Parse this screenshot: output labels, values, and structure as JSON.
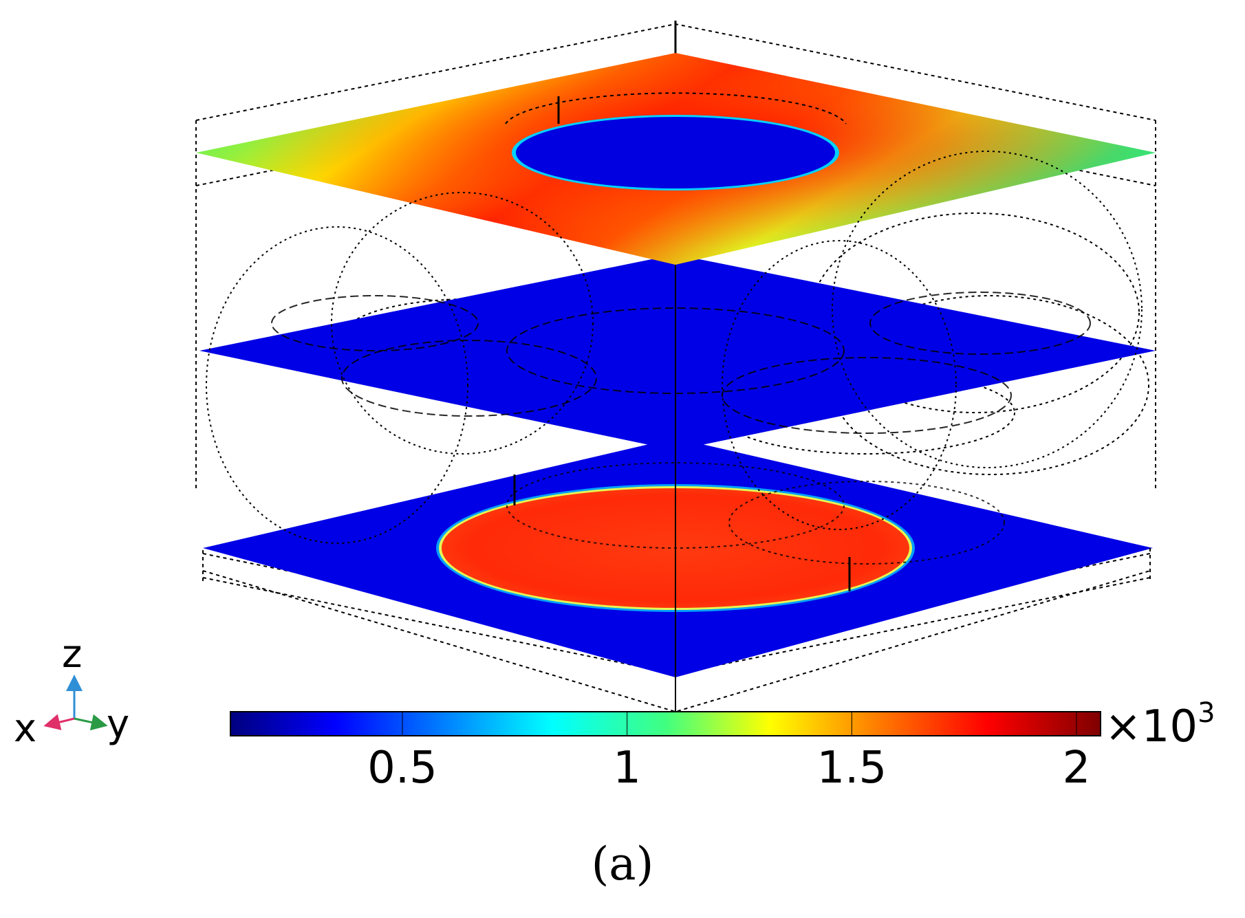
{
  "figure": {
    "caption": "(a)"
  },
  "triad": {
    "z_label": "z",
    "x_label": "x",
    "y_label": "y",
    "colors": {
      "z": "#2f8fd6",
      "x": "#e0306a",
      "y": "#2a9a45"
    }
  },
  "colorbar": {
    "ticks": [
      {
        "label": "0.5",
        "value": 0.5
      },
      {
        "label": "1",
        "value": 1.0
      },
      {
        "label": "1.5",
        "value": 1.5
      },
      {
        "label": "2",
        "value": 2.0
      }
    ],
    "multiplier": "×10",
    "exponent": "3",
    "colormap": "jet",
    "colors": [
      "#00007f",
      "#0000ff",
      "#00ffff",
      "#00ff7f",
      "#ffff00",
      "#ff7f00",
      "#ff0000",
      "#7f0000"
    ]
  },
  "planes": {
    "top": {
      "background": "#20e880",
      "circle_fill": "#0000e0",
      "hot": "#ff2000"
    },
    "middle": {
      "fill": "#0000e6"
    },
    "bottom": {
      "fill": "#0000e6",
      "circle_fill": "#ff3a10"
    }
  }
}
